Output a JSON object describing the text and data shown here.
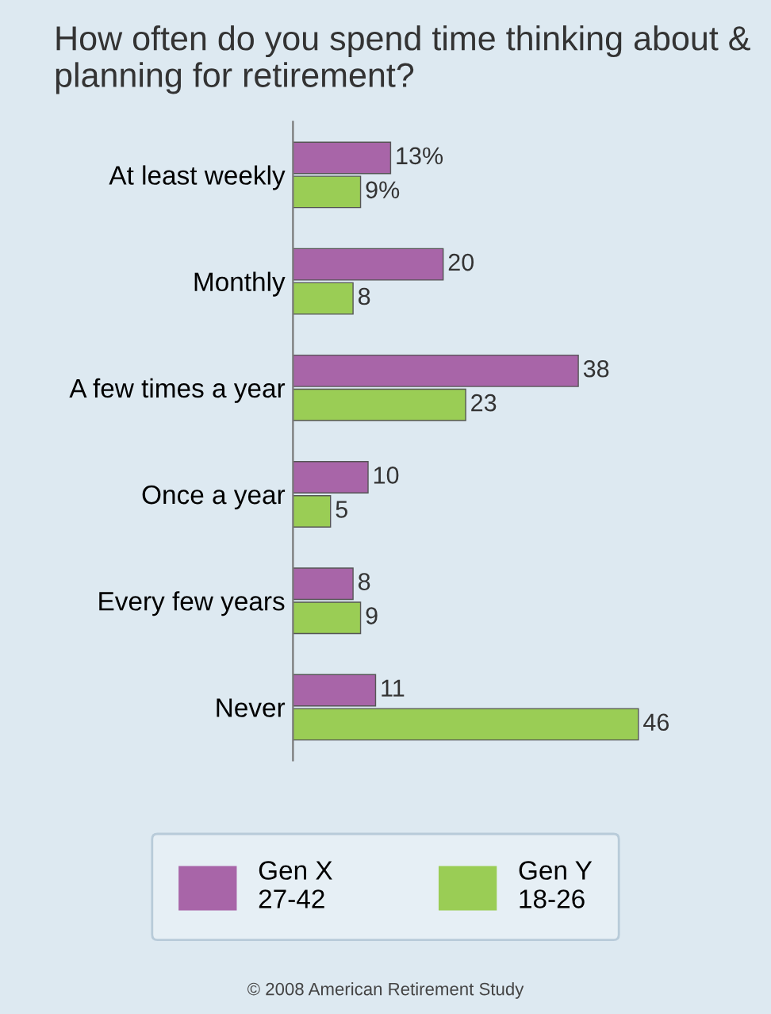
{
  "chart_data": {
    "type": "bar",
    "orientation": "horizontal",
    "title": "How often do you spend time thinking about & planning for retirement?",
    "categories": [
      "At least weekly",
      "Monthly",
      "A few times a year",
      "Once a year",
      "Every few years",
      "Never"
    ],
    "series": [
      {
        "name": "Gen X\n27-42",
        "color": "#a865a8",
        "values": [
          13,
          20,
          38,
          10,
          8,
          11
        ],
        "value_labels": [
          "13%",
          "20",
          "38",
          "10",
          "8",
          "11"
        ]
      },
      {
        "name": "Gen Y\n18-26",
        "color": "#9acd55",
        "values": [
          9,
          8,
          23,
          5,
          9,
          46
        ],
        "value_labels": [
          "9%",
          "8",
          "23",
          "5",
          "9",
          "46"
        ]
      }
    ],
    "legend": "bottom",
    "annotations": [
      "© 2008 American Retirement Study"
    ]
  }
}
